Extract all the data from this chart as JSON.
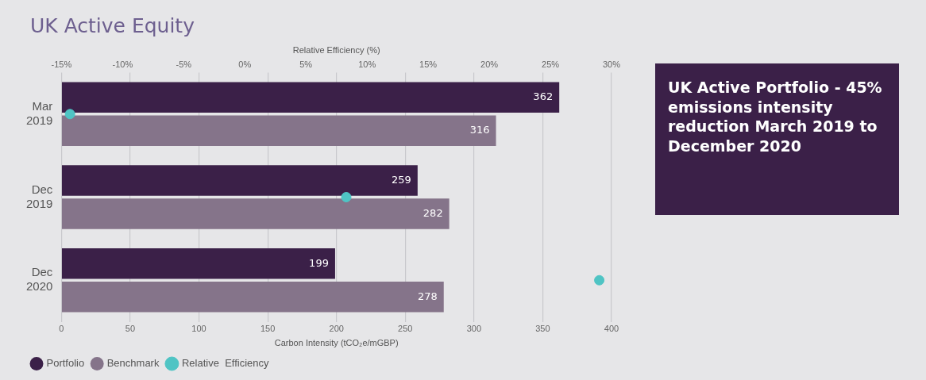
{
  "chart_data": {
    "type": "bar",
    "orientation": "horizontal",
    "title": "UK Active Equity",
    "categories": [
      "Mar 2019",
      "Dec 2019",
      "Dec 2020"
    ],
    "xlabel": "Carbon Intensity (tCO₂e/mGBP)",
    "x2label": "Relative Efficiency (%)",
    "xlim": [
      0,
      400
    ],
    "xticks": [
      0,
      50,
      100,
      150,
      200,
      250,
      300,
      350,
      400
    ],
    "x2lim": [
      -15,
      30
    ],
    "x2ticks": [
      {
        "value": -15,
        "label": "-15%"
      },
      {
        "value": -10,
        "label": "-10%"
      },
      {
        "value": -5,
        "label": "-5%"
      },
      {
        "value": 0,
        "label": "0%"
      },
      {
        "value": 5,
        "label": "5%"
      },
      {
        "value": 10,
        "label": "10%"
      },
      {
        "value": 15,
        "label": "15%"
      },
      {
        "value": 20,
        "label": "20%"
      },
      {
        "value": 25,
        "label": "25%"
      },
      {
        "value": 30,
        "label": "30%"
      }
    ],
    "series": [
      {
        "name": "Portfolio",
        "color": "#3b2048",
        "values": [
          362,
          259,
          199
        ],
        "value_labels": [
          "362",
          "259",
          "199"
        ]
      },
      {
        "name": "Benchmark",
        "color": "#85748a",
        "values": [
          316,
          282,
          278
        ],
        "value_labels": [
          "316",
          "282",
          "278"
        ]
      },
      {
        "name": "Relative  Efficiency",
        "type": "scatter",
        "axis": "x2",
        "marker": "circle",
        "color": "#4fc4c4",
        "values": [
          -14.3,
          8.3,
          29.0
        ]
      }
    ],
    "grid": "x",
    "legend": "bottom left",
    "annotations": [
      "UK Active Portfolio - 45% emissions intensity reduction March 2019 to December 2020"
    ]
  }
}
